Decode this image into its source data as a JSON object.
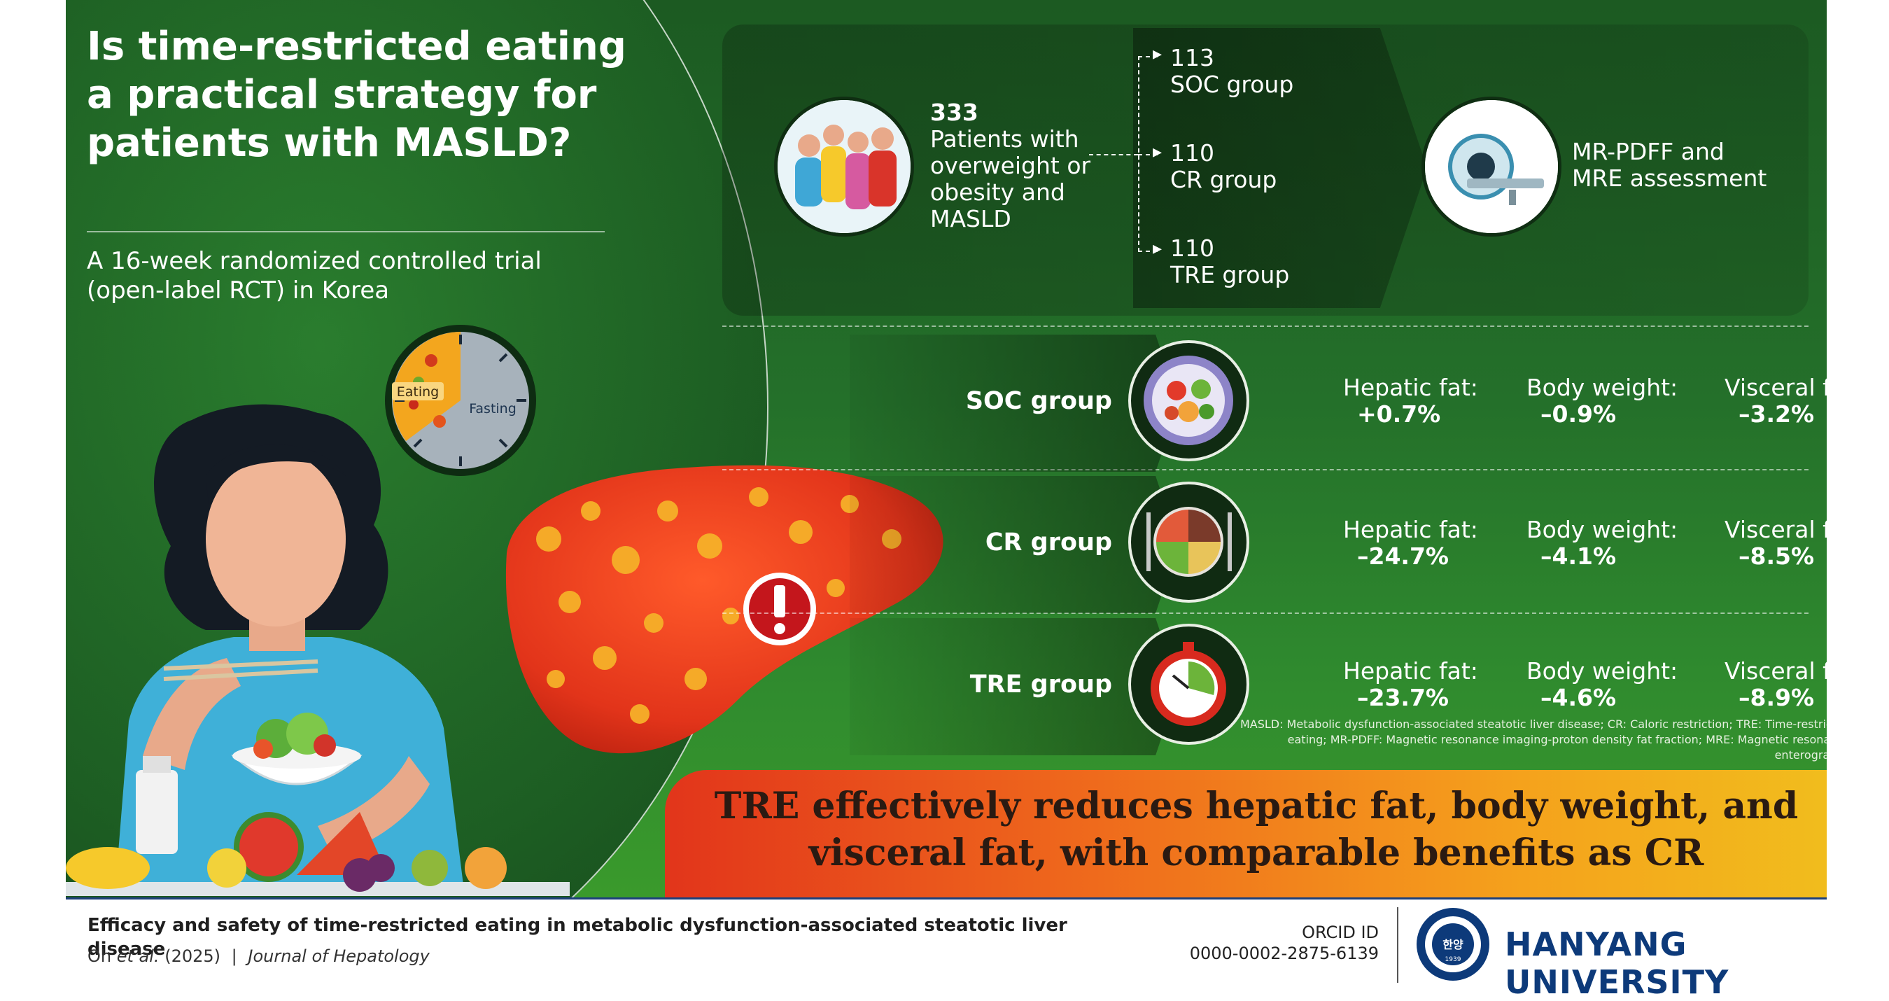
{
  "title": "Is time-restricted eating a practical strategy for patients with MASLD?",
  "subtitle": "A 16-week randomized controlled trial (open-label RCT) in Korea",
  "clock": {
    "eating_label": "Eating",
    "fasting_label": "Fasting"
  },
  "design": {
    "total": "333",
    "total_desc": "Patients with overweight or obesity and MASLD",
    "groups": [
      {
        "count": "113",
        "name": "SOC group"
      },
      {
        "count": "110",
        "name": "CR group"
      },
      {
        "count": "110",
        "name": "TRE group"
      }
    ],
    "assessment": "MR-PDFF and MRE assessment"
  },
  "results": [
    {
      "group": "SOC group",
      "icon": "salad-plate-icon",
      "metrics": [
        {
          "label": "Hepatic fat:",
          "value": "+0.7%"
        },
        {
          "label": "Body weight:",
          "value": "–0.9%"
        },
        {
          "label": "Visceral fat:",
          "value": "–3.2%"
        }
      ]
    },
    {
      "group": "CR group",
      "icon": "portion-plate-icon",
      "metrics": [
        {
          "label": "Hepatic fat:",
          "value": "–24.7%"
        },
        {
          "label": "Body weight:",
          "value": "–4.1%"
        },
        {
          "label": "Visceral fat:",
          "value": "–8.5%"
        }
      ]
    },
    {
      "group": "TRE group",
      "icon": "timer-plate-icon",
      "metrics": [
        {
          "label": "Hepatic fat:",
          "value": "–23.7%"
        },
        {
          "label": "Body weight:",
          "value": "–4.6%"
        },
        {
          "label": "Visceral fat:",
          "value": "–8.9%"
        }
      ]
    }
  ],
  "footnote": "MASLD: Metabolic dysfunction-associated steatotic liver disease; CR: Caloric restriction; TRE: Time-restricted eating; MR-PDFF: Magnetic resonance imaging-proton density fat fraction; MRE: Magnetic resonance enterography",
  "conclusion": "TRE effectively reduces hepatic fat, body weight, and visceral fat, with comparable benefits as CR",
  "footer": {
    "paper_title": "Efficacy and safety of time-restricted eating in metabolic dysfunction-associated steatotic liver disease",
    "authors": "Oh",
    "et_al": "et al.",
    "year": "(2025)",
    "separator": "|",
    "journal": "Journal of Hepatology",
    "orcid_label": "ORCID ID",
    "orcid_value": "0000-0002-2875-6139",
    "university": "HANYANG UNIVERSITY",
    "seal_text": "HANYANG UNIVERSITY",
    "seal_center": "한양",
    "seal_year": "1939"
  },
  "colors": {
    "background_green": "#24702a",
    "banner_start": "#e2351b",
    "banner_end": "#f0c21d",
    "university_blue": "#0d3a7a",
    "liver_red": "#e2341a"
  }
}
